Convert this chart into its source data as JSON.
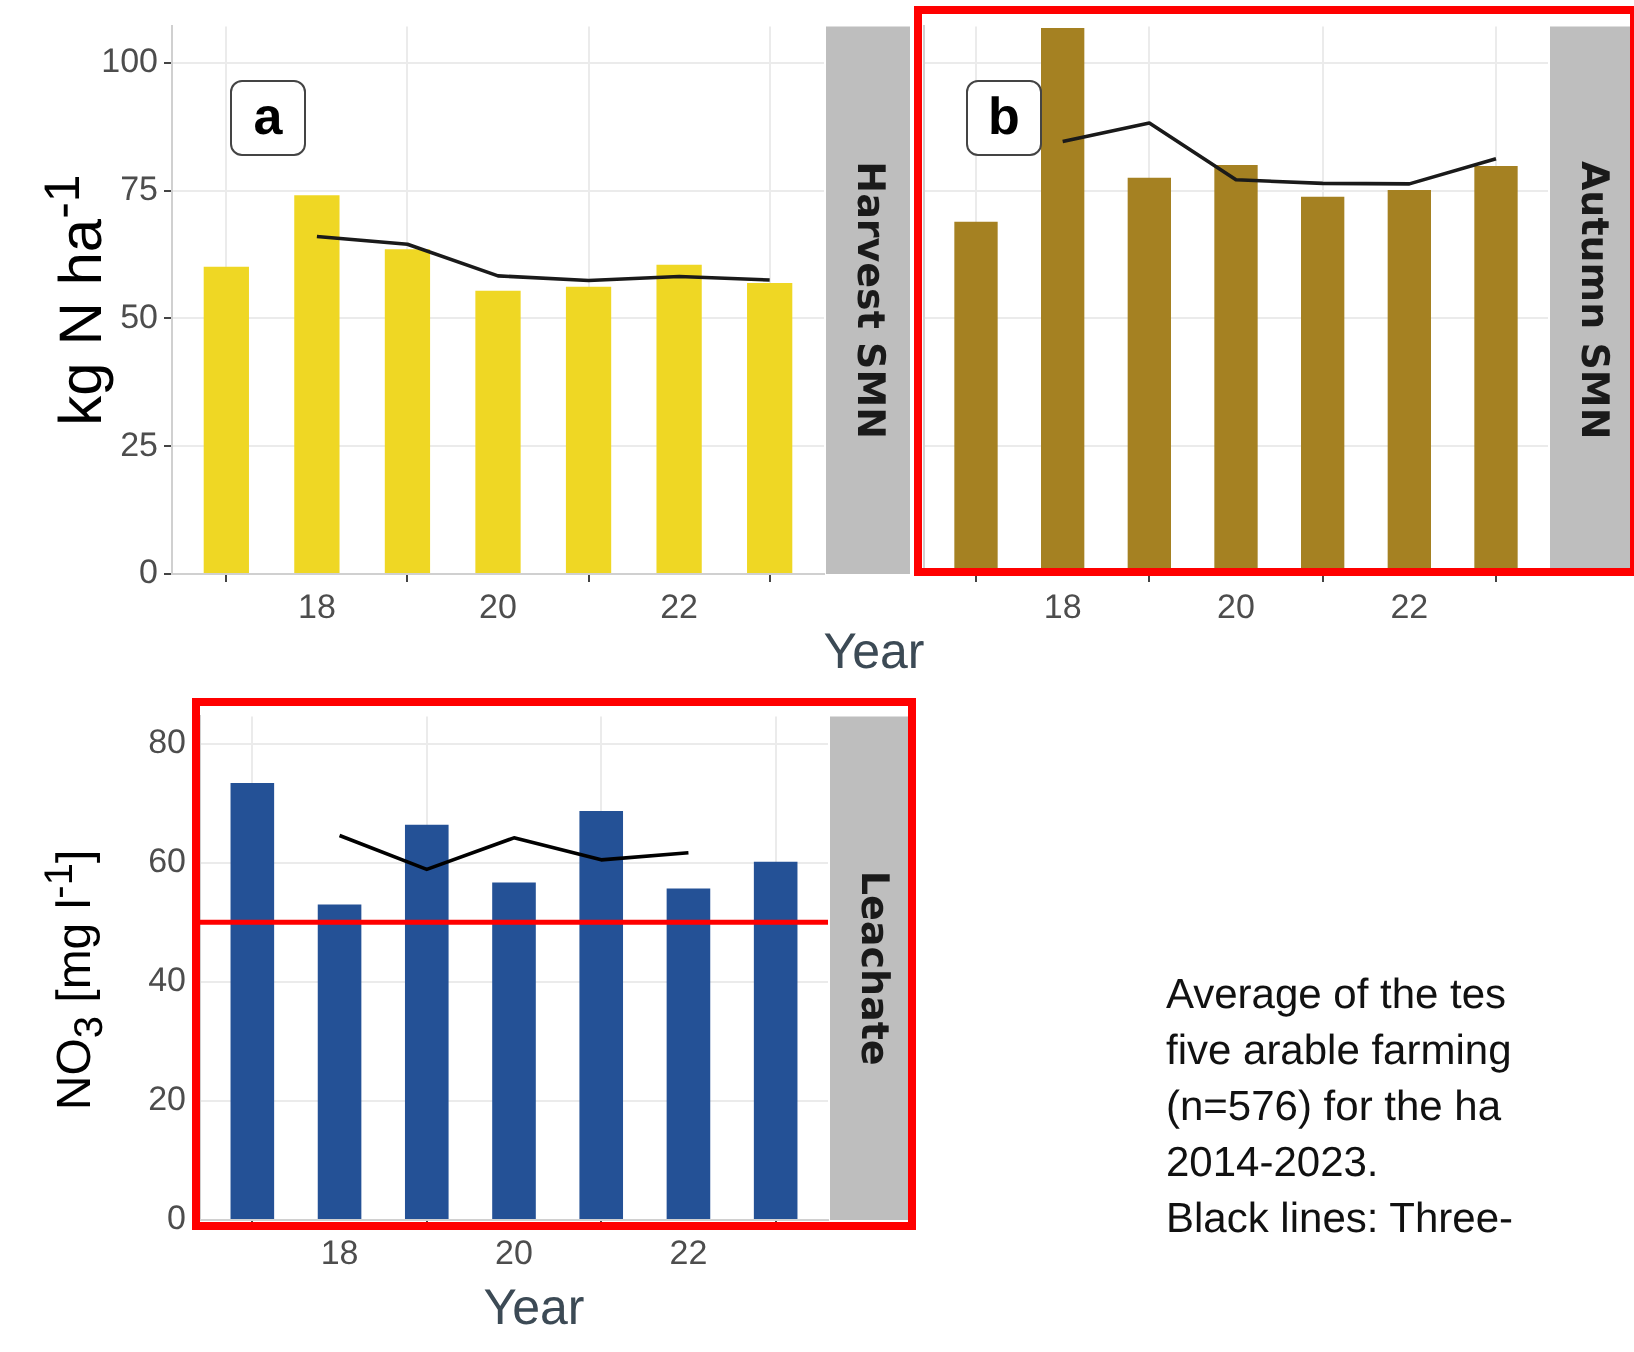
{
  "chart_data": [
    {
      "type": "bar",
      "ylabel": "kg N ha$^{-1}$",
      "xlabel": "Year",
      "x": [
        17,
        18,
        19,
        20,
        21,
        22,
        23
      ],
      "xlim": [
        16.4,
        23.6
      ],
      "xticks": [
        18,
        20,
        22
      ],
      "ylim": [
        0,
        107.1
      ],
      "yticks": [
        0,
        25,
        50,
        75,
        100
      ],
      "grid": true,
      "legend": false,
      "annotations": [
        "a",
        "Harvest SMN"
      ],
      "series": [
        {
          "type": "bar",
          "color": "#efd724",
          "values": [
            60.1,
            74.1,
            63.5,
            55.4,
            56.2,
            60.5,
            56.9
          ]
        },
        {
          "type": "line",
          "color": "#1a1a1a",
          "x": [
            18,
            19,
            20,
            21,
            22,
            23
          ],
          "values": [
            66,
            64.5,
            58.3,
            57.4,
            58.2,
            57.5
          ]
        }
      ]
    },
    {
      "type": "bar",
      "x": [
        17,
        18,
        19,
        20,
        21,
        22,
        23
      ],
      "xlim": [
        16.4,
        23.6
      ],
      "xticks": [
        18,
        20,
        22
      ],
      "ylim": [
        0,
        107.1
      ],
      "yticks": [
        0,
        25,
        50,
        75,
        100
      ],
      "tick_labels": "x",
      "grid": true,
      "legend": false,
      "annotations": [
        "b",
        "Autumn SMN"
      ],
      "series": [
        {
          "type": "bar",
          "color": "#a58122",
          "values": [
            68.9,
            106.8,
            77.5,
            80,
            73.8,
            75.1,
            79.8
          ]
        },
        {
          "type": "line",
          "color": "#1a1a1a",
          "x": [
            18,
            19,
            20,
            21,
            22,
            23
          ],
          "values": [
            84.6,
            88.2,
            77.1,
            76.4,
            76.3,
            81.2
          ]
        }
      ]
    },
    {
      "type": "bar",
      "ylabel": "NO$_{3}$ [mg l$^{-1}$]",
      "xlabel": "Year",
      "x": [
        17,
        18,
        19,
        20,
        21,
        22,
        23
      ],
      "xlim": [
        16.4,
        23.6
      ],
      "xticks": [
        18,
        20,
        22
      ],
      "ylim": [
        0,
        84.6
      ],
      "yticks": [
        0,
        20,
        40,
        60,
        80
      ],
      "grid": true,
      "legend": false,
      "ref_lines": [
        {
          "axis": "y",
          "value": 50,
          "color": "#ff0000"
        }
      ],
      "annotations": [
        "Leachate",
        "Average of the tes",
        "five arable farming",
        "(n=576) for the ha",
        "2014-2023.",
        "Black lines: Three-"
      ],
      "series": [
        {
          "type": "bar",
          "color": "#245196",
          "values": [
            73.4,
            53,
            66.4,
            56.7,
            68.7,
            55.7,
            60.2
          ]
        },
        {
          "type": "line",
          "color": "#000000",
          "x": [
            18,
            19,
            20,
            21,
            22
          ],
          "values": [
            64.6,
            58.9,
            64.2,
            60.5,
            61.7
          ]
        }
      ]
    }
  ]
}
